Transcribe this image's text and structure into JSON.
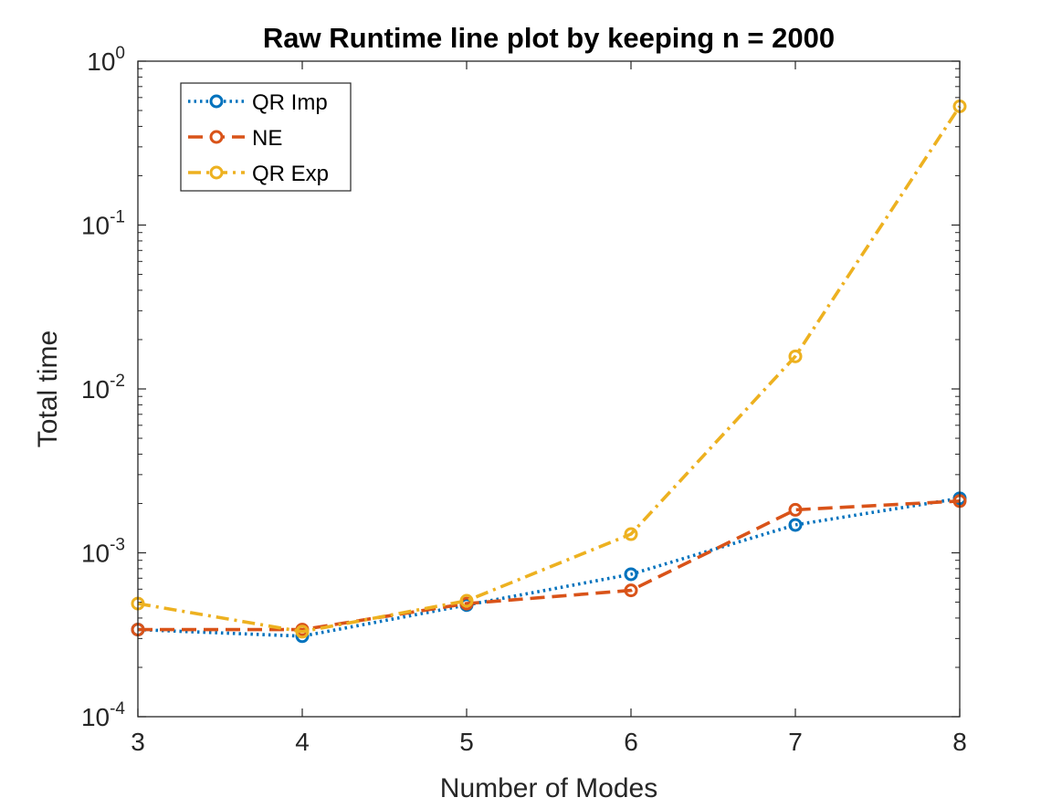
{
  "chart_data": {
    "type": "line",
    "title": "Raw Runtime line plot by keeping n = 2000",
    "xlabel": "Number of Modes",
    "ylabel": "Total time",
    "x": [
      3,
      4,
      5,
      6,
      7,
      8
    ],
    "xlim": [
      3,
      8
    ],
    "yscale": "log",
    "ylim": [
      0.0001,
      1
    ],
    "x_ticks": [
      "3",
      "4",
      "5",
      "6",
      "7",
      "8"
    ],
    "y_ticks": [
      {
        "value": 0.0001,
        "base": "10",
        "exp": "-4"
      },
      {
        "value": 0.001,
        "base": "10",
        "exp": "-3"
      },
      {
        "value": 0.01,
        "base": "10",
        "exp": "-2"
      },
      {
        "value": 0.1,
        "base": "10",
        "exp": "-1"
      },
      {
        "value": 1,
        "base": "10",
        "exp": "0"
      }
    ],
    "grid": false,
    "legend_position": "top-left",
    "series": [
      {
        "name": "QR Imp",
        "values": [
          0.00034,
          0.00031,
          0.00048,
          0.00074,
          0.00148,
          0.00215
        ],
        "color": "#0072BD",
        "dash": "dotted"
      },
      {
        "name": "NE",
        "values": [
          0.00034,
          0.00034,
          0.00049,
          0.00059,
          0.00183,
          0.00207
        ],
        "color": "#D95319",
        "dash": "dashed"
      },
      {
        "name": "QR Exp",
        "values": [
          0.00049,
          0.00033,
          0.00051,
          0.0013,
          0.0158,
          0.53
        ],
        "color": "#EDB120",
        "dash": "dashdot"
      }
    ]
  }
}
